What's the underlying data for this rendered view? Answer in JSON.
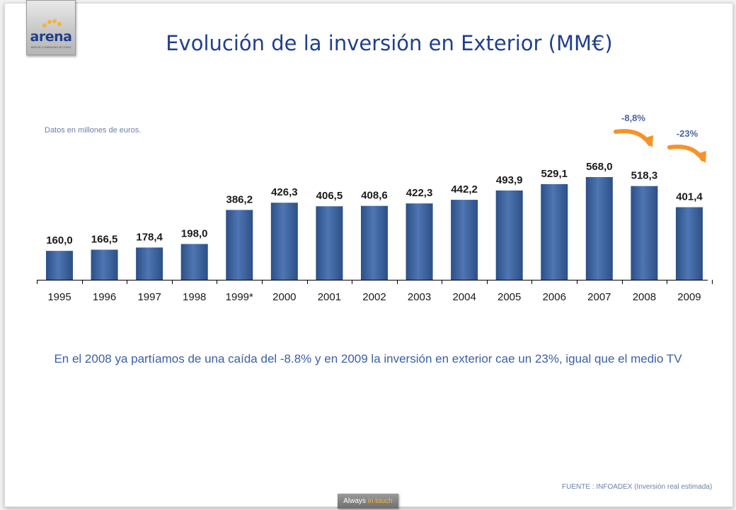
{
  "logo": {
    "word": "arena",
    "tagline": "MEDIA COMMUNICATIONS"
  },
  "title": "Evolución de la inversión en Exterior (MM€)",
  "units_note": "Datos en millones de euros.",
  "summary": "En el 2008 ya partíamos de una caída del -8.8% y en 2009 la inversión en exterior cae un 23%, igual que el medio TV",
  "source": "FUENTE : INFOADEX (Inversión real estimada)",
  "badge": {
    "text_a": "Always",
    "text_b": "in touch"
  },
  "colors": {
    "bar_dark": "#2c4f86",
    "bar_light": "#4f76b3",
    "arrow": "#f5932a",
    "title": "#1f3f8f"
  },
  "chart_data": {
    "type": "bar",
    "title": "Evolución de la inversión en Exterior (MM€)",
    "categories": [
      "1995",
      "1996",
      "1997",
      "1998",
      "1999*",
      "2000",
      "2001",
      "2002",
      "2003",
      "2004",
      "2005",
      "2006",
      "2007",
      "2008",
      "2009"
    ],
    "values": [
      160.0,
      166.5,
      178.4,
      198.0,
      386.2,
      426.3,
      406.5,
      408.6,
      422.3,
      442.2,
      493.9,
      529.1,
      568.0,
      518.3,
      401.4
    ],
    "data_labels": [
      "160,0",
      "166,5",
      "178,4",
      "198,0",
      "386,2",
      "426,3",
      "406,5",
      "408,6",
      "422,3",
      "442,2",
      "493,9",
      "529,1",
      "568,0",
      "518,3",
      "401,4"
    ],
    "ylim": [
      0,
      600
    ],
    "grid": false,
    "legend": "none",
    "annotations": [
      {
        "label": "-8,8%",
        "category": "2008"
      },
      {
        "label": "-23%",
        "category": "2009"
      }
    ]
  }
}
